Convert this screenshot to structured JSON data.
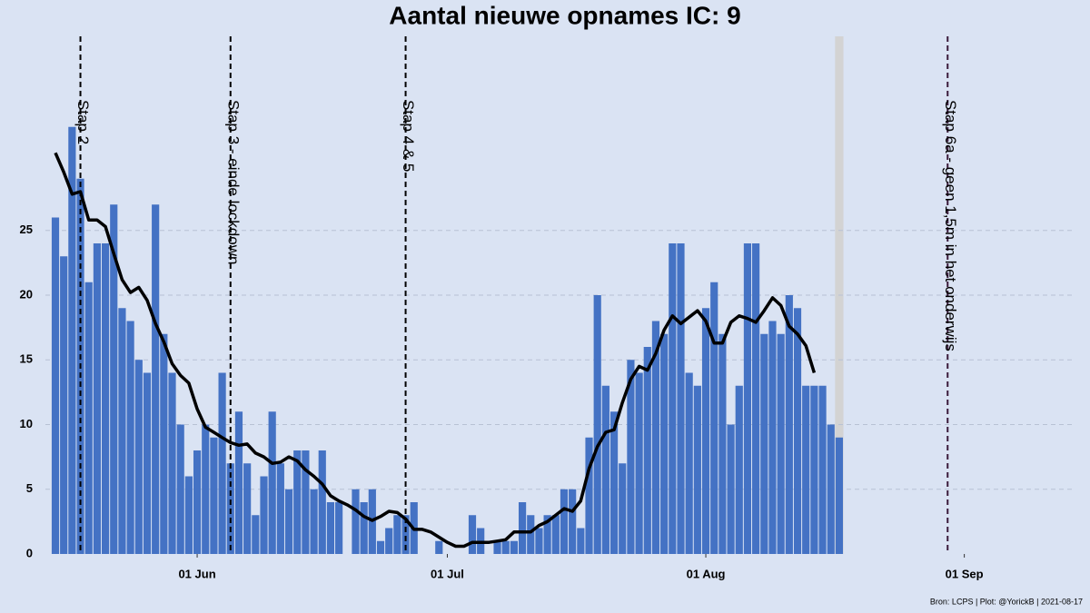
{
  "chart_data": {
    "type": "bar",
    "title": "Aantal nieuwe opnames IC:  9",
    "caption": "Bron: LCPS | Plot: @YorickB |  2021-08-17",
    "x": [
      "15 May",
      "16 May",
      "17 May",
      "18 May",
      "19 May",
      "20 May",
      "21 May",
      "22 May",
      "23 May",
      "24 May",
      "25 May",
      "26 May",
      "27 May",
      "28 May",
      "29 May",
      "30 May",
      "31 May",
      "01 Jun",
      "02 Jun",
      "03 Jun",
      "04 Jun",
      "05 Jun",
      "06 Jun",
      "07 Jun",
      "08 Jun",
      "09 Jun",
      "10 Jun",
      "11 Jun",
      "12 Jun",
      "13 Jun",
      "14 Jun",
      "15 Jun",
      "16 Jun",
      "17 Jun",
      "18 Jun",
      "19 Jun",
      "20 Jun",
      "21 Jun",
      "22 Jun",
      "23 Jun",
      "24 Jun",
      "25 Jun",
      "26 Jun",
      "27 Jun",
      "28 Jun",
      "29 Jun",
      "30 Jun",
      "01 Jul",
      "02 Jul",
      "03 Jul",
      "04 Jul",
      "05 Jul",
      "06 Jul",
      "07 Jul",
      "08 Jul",
      "09 Jul",
      "10 Jul",
      "11 Jul",
      "12 Jul",
      "13 Jul",
      "14 Jul",
      "15 Jul",
      "16 Jul",
      "17 Jul",
      "18 Jul",
      "19 Jul",
      "20 Jul",
      "21 Jul",
      "22 Jul",
      "23 Jul",
      "24 Jul",
      "25 Jul",
      "26 Jul",
      "27 Jul",
      "28 Jul",
      "29 Jul",
      "30 Jul",
      "31 Jul",
      "01 Aug",
      "02 Aug",
      "03 Aug",
      "04 Aug",
      "05 Aug",
      "06 Aug",
      "07 Aug",
      "08 Aug",
      "09 Aug",
      "10 Aug",
      "11 Aug",
      "12 Aug",
      "13 Aug",
      "14 Aug",
      "15 Aug",
      "16 Aug",
      "17 Aug"
    ],
    "series": [
      {
        "type": "bar",
        "color": "#4472c4",
        "values": [
          26,
          23,
          33,
          29,
          21,
          24,
          24,
          27,
          19,
          18,
          15,
          14,
          27,
          17,
          14,
          10,
          6,
          8,
          10,
          9,
          14,
          7,
          11,
          7,
          3,
          6,
          11,
          7,
          5,
          8,
          8,
          5,
          8,
          4,
          4,
          0,
          5,
          4,
          5,
          1,
          2,
          3,
          3,
          4,
          0,
          0,
          1,
          0,
          0,
          0,
          3,
          2,
          0,
          1,
          1,
          1,
          4,
          3,
          2,
          3,
          3,
          5,
          5,
          2,
          9,
          20,
          13,
          11,
          7,
          15,
          14,
          16,
          18,
          17,
          24,
          24,
          14,
          13,
          19,
          21,
          17,
          10,
          13,
          24,
          24,
          17,
          18,
          17,
          20,
          19,
          13,
          13,
          13,
          10,
          9
        ]
      },
      {
        "type": "line",
        "color": "#000000",
        "values": [
          31,
          29.5,
          27.8,
          28,
          25.8,
          25.8,
          25.3,
          23.2,
          21.2,
          20.2,
          20.6,
          19.6,
          17.8,
          16.4,
          14.7,
          13.8,
          13.2,
          11.2,
          9.8,
          9.4,
          9,
          8.6,
          8.4,
          8.5,
          7.8,
          7.5,
          7,
          7.1,
          7.5,
          7.2,
          6.5,
          6,
          5.4,
          4.5,
          4.1,
          3.8,
          3.4,
          2.9,
          2.6,
          2.9,
          3.3,
          3.2,
          2.7,
          1.9,
          1.9,
          1.7,
          1.3,
          0.9,
          0.6,
          0.6,
          0.9,
          0.9,
          0.9,
          1,
          1.1,
          1.7,
          1.7,
          1.7,
          2.2,
          2.5,
          3,
          3.5,
          3.3,
          4.1,
          6.6,
          8.3,
          9.4,
          9.6,
          11.7,
          13.5,
          14.5,
          14.2,
          15.5,
          17.3,
          18.4,
          17.8,
          18.3,
          18.8,
          18,
          16.3,
          16.3,
          17.9,
          18.4,
          18.2,
          17.9,
          18.8,
          19.8,
          19.2,
          17.6,
          17,
          16.1,
          14,
          null,
          null,
          null
        ]
      }
    ],
    "xticks": [
      "01 Jun",
      "01 Jul",
      "01 Aug",
      "01 Sep"
    ],
    "ylim": [
      0,
      40
    ],
    "yticks": [
      0,
      5,
      10,
      15,
      20,
      25
    ],
    "grid": true,
    "highlight": "17 Aug",
    "highlight_color": "#d3d3d3",
    "annotations": [
      {
        "x": "18 May",
        "label": "Stap 2",
        "color": "#000000"
      },
      {
        "x": "05 Jun",
        "label": "Stap 3 - einde lockdown",
        "color": "#000000"
      },
      {
        "x": "26 Jun",
        "label": "Stap 4 & 5",
        "color": "#000000"
      },
      {
        "x": "30 Aug",
        "label": "Stap 6a - geen 1,5m in het onderwijs",
        "color": "#3a1a3a"
      }
    ]
  }
}
